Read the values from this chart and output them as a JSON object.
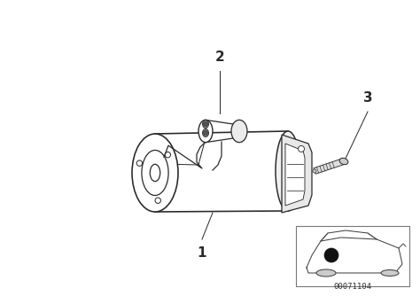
{
  "bg_color": "#ffffff",
  "line_color": "#2a2a2a",
  "label_1": "1",
  "label_2": "2",
  "label_3": "3",
  "part_number": "00071104",
  "fig_width": 4.74,
  "fig_height": 3.34,
  "dpi": 100
}
